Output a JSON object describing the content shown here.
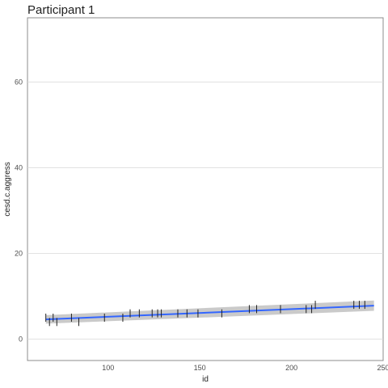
{
  "chart_data": {
    "type": "scatter",
    "title": "Participant 1",
    "xlabel": "id",
    "ylabel": "cesd.c.aggress",
    "xlim": [
      56,
      250
    ],
    "ylim": [
      -5,
      75
    ],
    "x_ticks": [
      100,
      150,
      200,
      250
    ],
    "y_ticks": [
      0,
      20,
      40,
      60
    ],
    "grid": true,
    "colors": {
      "fit_line": "#3366ff",
      "confidence_band": "#bdbdbd",
      "points": "#222222",
      "grid": "#d9d9d9",
      "panel_border": "#8c8c8c"
    },
    "points": [
      {
        "x": 66,
        "y": 5
      },
      {
        "x": 68,
        "y": 4
      },
      {
        "x": 70,
        "y": 5
      },
      {
        "x": 72,
        "y": 4
      },
      {
        "x": 80,
        "y": 5
      },
      {
        "x": 84,
        "y": 4
      },
      {
        "x": 98,
        "y": 5
      },
      {
        "x": 108,
        "y": 5
      },
      {
        "x": 112,
        "y": 6
      },
      {
        "x": 117,
        "y": 6
      },
      {
        "x": 124,
        "y": 6
      },
      {
        "x": 127,
        "y": 6
      },
      {
        "x": 129,
        "y": 6
      },
      {
        "x": 138,
        "y": 6
      },
      {
        "x": 143,
        "y": 6
      },
      {
        "x": 149,
        "y": 6
      },
      {
        "x": 162,
        "y": 6
      },
      {
        "x": 177,
        "y": 7
      },
      {
        "x": 181,
        "y": 7
      },
      {
        "x": 194,
        "y": 7
      },
      {
        "x": 208,
        "y": 7
      },
      {
        "x": 211,
        "y": 7
      },
      {
        "x": 213,
        "y": 8
      },
      {
        "x": 234,
        "y": 8
      },
      {
        "x": 237,
        "y": 8
      },
      {
        "x": 240,
        "y": 8
      }
    ],
    "fit": {
      "x": [
        66,
        245
      ],
      "y": [
        4.6,
        7.8
      ]
    },
    "band": {
      "x": [
        66,
        245
      ],
      "lower": [
        3.6,
        6.6
      ],
      "upper": [
        5.6,
        9.0
      ]
    }
  }
}
